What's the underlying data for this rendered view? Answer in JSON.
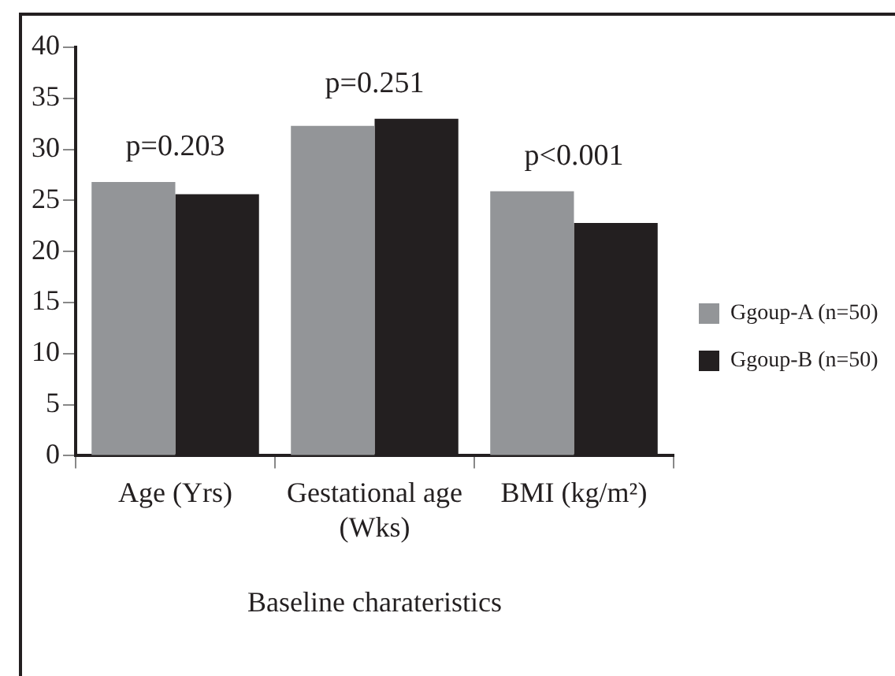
{
  "chart_data": {
    "type": "bar",
    "xlabel": "Baseline charateristics",
    "categories": [
      "Age (Yrs)",
      "Gestational age (Wks)",
      "BMI (kg/m²)"
    ],
    "series": [
      {
        "name": "Ggoup-A (n=50)",
        "color": "#939598",
        "values": [
          26.8,
          32.3,
          25.9
        ]
      },
      {
        "name": "Ggoup-B (n=50)",
        "color": "#231f20",
        "values": [
          25.6,
          33.0,
          22.8
        ]
      }
    ],
    "ylim": [
      0,
      40
    ],
    "yticks": [
      0,
      5,
      10,
      15,
      20,
      25,
      30,
      35,
      40
    ],
    "annotations": [
      "p=0.203",
      "p=0.251",
      "p<0.001"
    ],
    "grid": false,
    "legend": "right"
  }
}
